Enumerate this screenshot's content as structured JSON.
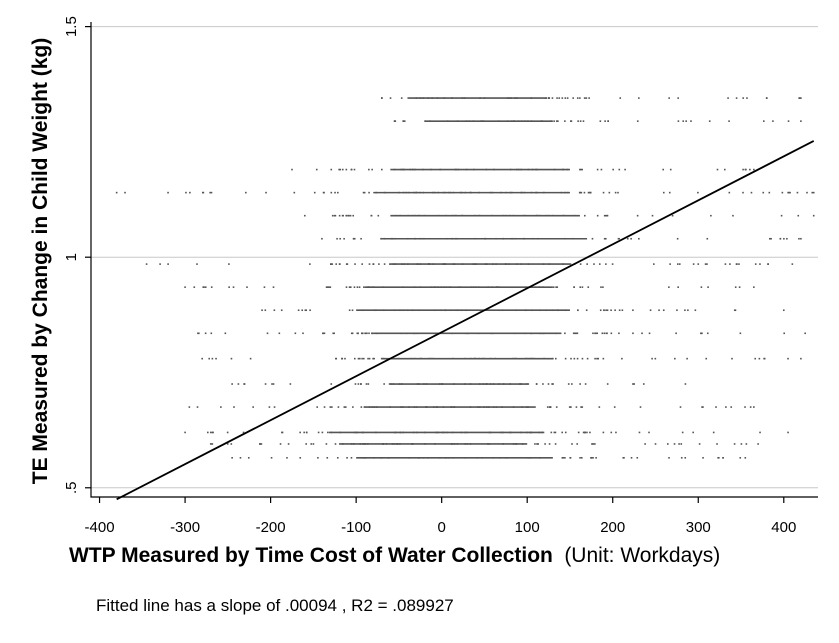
{
  "chart_data": {
    "type": "scatter",
    "title": "",
    "xlabel": "WTP Measured by Time Cost of Water Collection",
    "xlabel_unit": "(Unit: Workdays)",
    "ylabel": "TE Measured by Change in Child Weight (kg)",
    "xlim": [
      -410,
      440
    ],
    "ylim": [
      0.48,
      1.51
    ],
    "x_ticks": [
      -400,
      -300,
      -200,
      -100,
      0,
      100,
      200,
      300,
      400
    ],
    "y_ticks": [
      0.5,
      1,
      1.5
    ],
    "x_tick_labels": [
      "-400",
      "-300",
      "-200",
      "-100",
      "0",
      "100",
      "200",
      "300",
      "400"
    ],
    "y_tick_labels": [
      ".5",
      "1",
      "1.5"
    ],
    "grid": "horizontal",
    "legend": "none",
    "marker_color": "#555555",
    "point_bands": [
      {
        "y": 1.345,
        "x_min": -70,
        "x_max": 420,
        "dense_min": -40,
        "dense_max": 120
      },
      {
        "y": 1.295,
        "x_min": -55,
        "x_max": 420,
        "dense_min": -20,
        "dense_max": 130
      },
      {
        "y": 1.19,
        "x_min": -175,
        "x_max": 365,
        "dense_min": -60,
        "dense_max": 150
      },
      {
        "y": 1.14,
        "x_min": -380,
        "x_max": 435,
        "dense_min": -80,
        "dense_max": 150
      },
      {
        "y": 1.09,
        "x_min": -160,
        "x_max": 435,
        "dense_min": -60,
        "dense_max": 160
      },
      {
        "y": 1.04,
        "x_min": -140,
        "x_max": 420,
        "dense_min": -70,
        "dense_max": 170
      },
      {
        "y": 0.985,
        "x_min": -345,
        "x_max": 410,
        "dense_min": -60,
        "dense_max": 150
      },
      {
        "y": 0.935,
        "x_min": -300,
        "x_max": 365,
        "dense_min": -90,
        "dense_max": 130
      },
      {
        "y": 0.885,
        "x_min": -210,
        "x_max": 400,
        "dense_min": -100,
        "dense_max": 150
      },
      {
        "y": 0.835,
        "x_min": -285,
        "x_max": 425,
        "dense_min": -80,
        "dense_max": 140
      },
      {
        "y": 0.78,
        "x_min": -280,
        "x_max": 420,
        "dense_min": -70,
        "dense_max": 130
      },
      {
        "y": 0.725,
        "x_min": -245,
        "x_max": 285,
        "dense_min": -60,
        "dense_max": 100
      },
      {
        "y": 0.675,
        "x_min": -295,
        "x_max": 365,
        "dense_min": -90,
        "dense_max": 110
      },
      {
        "y": 0.62,
        "x_min": -300,
        "x_max": 405,
        "dense_min": -130,
        "dense_max": 120
      },
      {
        "y": 0.595,
        "x_min": -270,
        "x_max": 370,
        "dense_min": -120,
        "dense_max": 100
      },
      {
        "y": 0.565,
        "x_min": -245,
        "x_max": 355,
        "dense_min": -100,
        "dense_max": 130
      }
    ],
    "fitted_line": {
      "x": [
        -380,
        435
      ],
      "y": [
        0.475,
        1.252
      ],
      "color": "#000000"
    },
    "note": "Fitted line has a slope of .00094 , R2 = .089927"
  }
}
